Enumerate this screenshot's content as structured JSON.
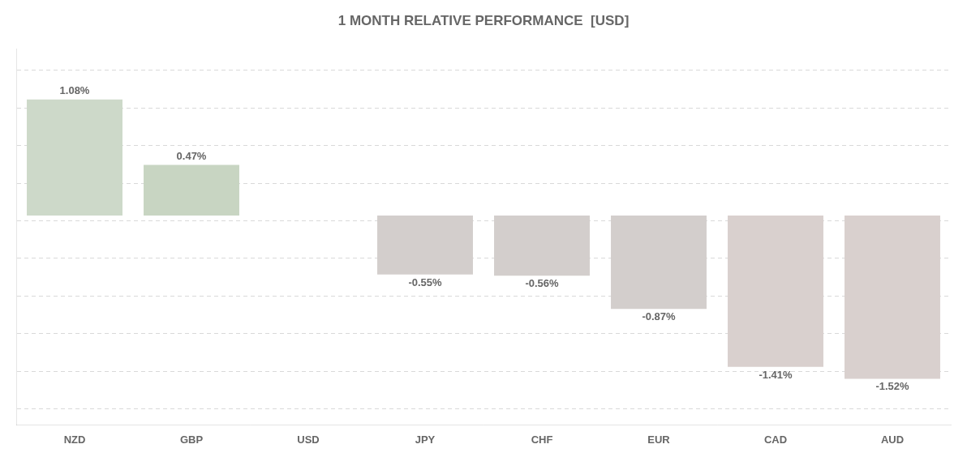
{
  "chart_data": {
    "type": "bar",
    "title": "1 MONTH RELATIVE PERFORMANCE  [USD]",
    "categories": [
      "NZD",
      "GBP",
      "USD",
      "JPY",
      "CHF",
      "EUR",
      "CAD",
      "AUD"
    ],
    "values": [
      1.08,
      0.47,
      0.0,
      -0.55,
      -0.56,
      -0.87,
      -1.41,
      -1.52
    ],
    "value_labels": [
      "1.08%",
      "0.47%",
      null,
      "-0.55%",
      "-0.56%",
      "-0.87%",
      "-1.41%",
      "-1.52%"
    ],
    "data_labels": true,
    "colors": [
      "#cdd9c9",
      "#c8d5c2",
      "#888888",
      "#d3cecc",
      "#d3cecc",
      "#d3cecc",
      "#d9d0ce",
      "#d9d0ce"
    ],
    "ylim": [
      -1.95,
      1.55
    ],
    "yticks": [
      -1.8,
      -1.45,
      -1.1,
      -0.75,
      -0.4,
      -0.05,
      0.3,
      0.65,
      1.0,
      1.35
    ],
    "grid": true,
    "tick_labels": "x"
  }
}
